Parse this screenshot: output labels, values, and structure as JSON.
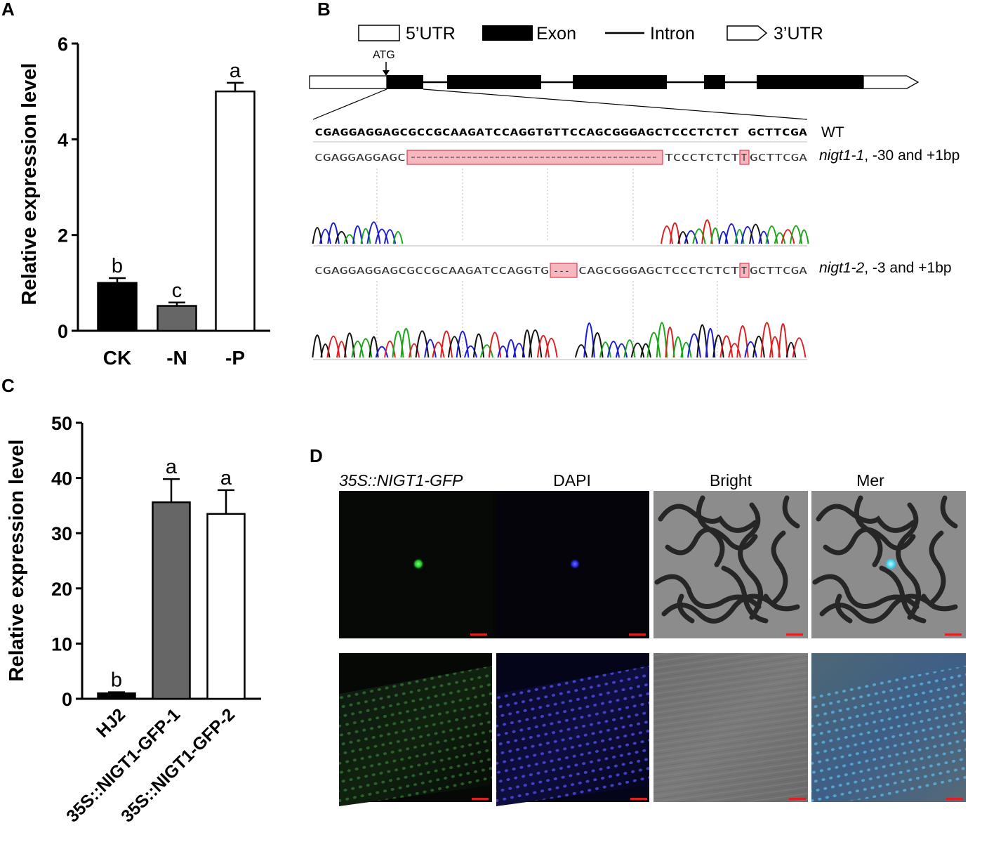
{
  "panels": {
    "A": {
      "letter": "A",
      "chart_data": {
        "type": "bar",
        "categories": [
          "CK",
          "-N",
          "-P"
        ],
        "values": [
          1.0,
          0.52,
          5.0
        ],
        "errors": [
          0.1,
          0.07,
          0.18
        ],
        "letters": [
          "b",
          "c",
          "a"
        ],
        "bar_colors": [
          "#000000",
          "#666666",
          "#ffffff"
        ],
        "ylabel": "Relative expression level",
        "ylim": [
          0,
          6
        ],
        "yticks": [
          0,
          2,
          4,
          6
        ],
        "ytick_labels": [
          "0",
          "2",
          "4",
          "6"
        ],
        "grid": false
      }
    },
    "B": {
      "letter": "B",
      "legend": [
        {
          "label": "5’UTR",
          "icon": "open-box"
        },
        {
          "label": "Exon",
          "icon": "filled-box"
        },
        {
          "label": "Intron",
          "icon": "line"
        },
        {
          "label": "3’UTR",
          "icon": "arrow-box"
        }
      ],
      "atg_label": "ATG",
      "wt": {
        "sequence": "CGAGGAGGAGCGCCGCAAGATCCAGGTGTTCCAGCGGGAGCTCCCTCTCT GCTTCGA",
        "label": "WT"
      },
      "mut1": {
        "seq_left": "CGAGGAGGAGC",
        "seq_right": "TCCCTCTCT",
        "insert": "T",
        "seq_end": "GCTTCGA",
        "label_name": "nigt1-1",
        "label_rest": ", -30 and +1bp"
      },
      "mut2": {
        "seq_left": "CGAGGAGGAGCGCCGCAAGATCCAGGTG",
        "deletion": "---",
        "seq_right": "CAGCGGGAGCTCCCTCTCT",
        "insert": "T",
        "seq_end": "GCTTCGA",
        "label_name": "nigt1-2",
        "label_rest": ", -3 and +1bp"
      }
    },
    "C": {
      "letter": "C",
      "chart_data": {
        "type": "bar",
        "categories": [
          "HJ2",
          "35S::NIGT1-GFP-1",
          "35S::NIGT1-GFP-2"
        ],
        "values": [
          1.0,
          35.6,
          33.5
        ],
        "errors": [
          0.2,
          4.2,
          4.3
        ],
        "letters": [
          "b",
          "a",
          "a"
        ],
        "bar_colors": [
          "#000000",
          "#666666",
          "#ffffff"
        ],
        "ylabel": "Relative expression level",
        "ylim": [
          0,
          50
        ],
        "yticks": [
          0,
          10,
          20,
          30,
          40,
          50
        ],
        "ytick_labels": [
          "0",
          "10",
          "20",
          "30",
          "40",
          "50"
        ],
        "grid": false
      }
    },
    "D": {
      "letter": "D",
      "column_titles": [
        "35S::NIGT1-GFP",
        "DAPI",
        "Bright",
        "Mer"
      ]
    }
  }
}
